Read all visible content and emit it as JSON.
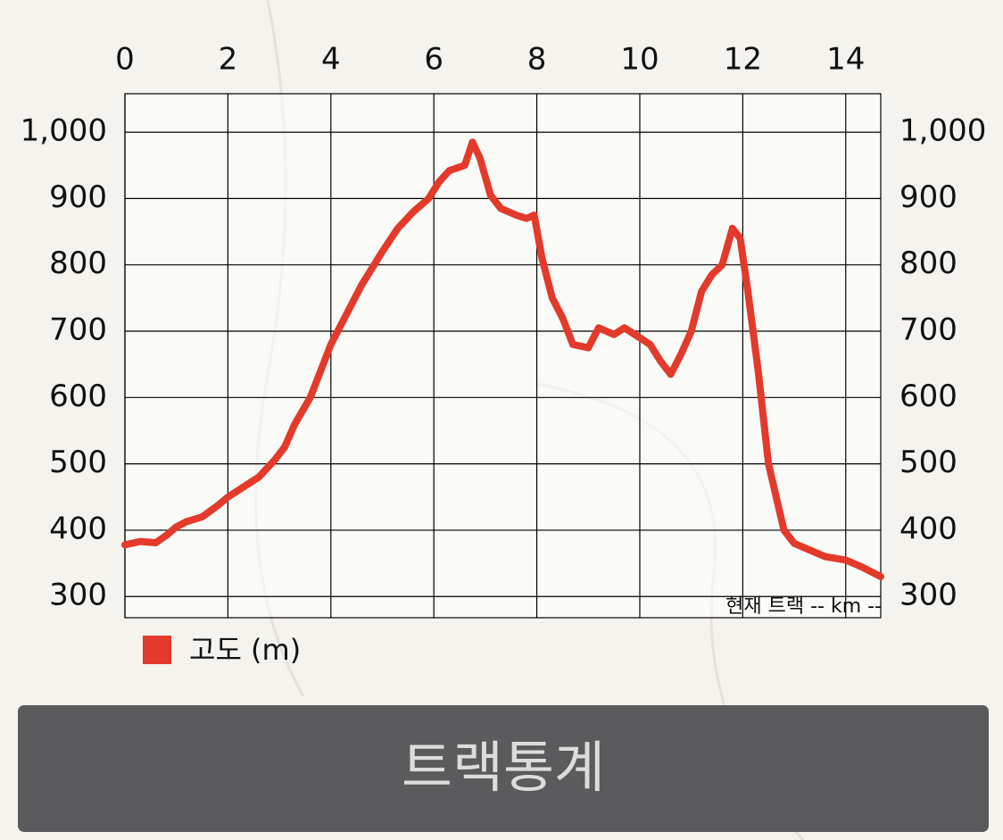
{
  "chart_data": {
    "type": "line",
    "x": [
      0,
      0.3,
      0.6,
      0.8,
      1.0,
      1.2,
      1.5,
      1.8,
      2.0,
      2.3,
      2.6,
      2.9,
      3.1,
      3.3,
      3.6,
      3.8,
      4.0,
      4.3,
      4.6,
      5.0,
      5.3,
      5.6,
      5.9,
      6.1,
      6.3,
      6.6,
      6.75,
      6.9,
      7.1,
      7.3,
      7.6,
      7.8,
      7.95,
      8.1,
      8.3,
      8.5,
      8.7,
      9.0,
      9.2,
      9.5,
      9.7,
      10.0,
      10.2,
      10.4,
      10.6,
      10.8,
      11.0,
      11.2,
      11.4,
      11.6,
      11.8,
      11.95,
      12.1,
      12.3,
      12.5,
      12.8,
      13.0,
      13.3,
      13.6,
      14.0,
      14.3,
      14.68
    ],
    "series": [
      {
        "name": "고도 (m)",
        "color": "#e33a2b",
        "values": [
          378,
          383,
          381,
          392,
          405,
          413,
          420,
          437,
          450,
          465,
          480,
          505,
          525,
          560,
          600,
          640,
          680,
          725,
          770,
          820,
          855,
          880,
          900,
          925,
          942,
          950,
          985,
          960,
          905,
          885,
          875,
          870,
          875,
          810,
          750,
          720,
          680,
          675,
          705,
          695,
          705,
          690,
          680,
          655,
          635,
          665,
          700,
          760,
          785,
          800,
          855,
          840,
          760,
          640,
          500,
          400,
          380,
          370,
          360,
          355,
          345,
          330
        ]
      }
    ],
    "xlim": [
      0,
      14.68
    ],
    "xticks": [
      0,
      2,
      4,
      6,
      8,
      10,
      12,
      14
    ],
    "ylim": [
      268,
      1058
    ],
    "yticks": [
      300,
      400,
      500,
      600,
      700,
      800,
      900,
      {
        "value": 1000,
        "label": "1,000"
      }
    ],
    "y2lim": [
      268,
      1058
    ],
    "y2ticks": [
      300,
      400,
      500,
      600,
      700,
      800,
      900,
      {
        "value": 1000,
        "label": "1,000"
      }
    ],
    "grid": true,
    "annotation": "현재 트랙 -- km --"
  },
  "button": {
    "label": "트랙통계"
  }
}
